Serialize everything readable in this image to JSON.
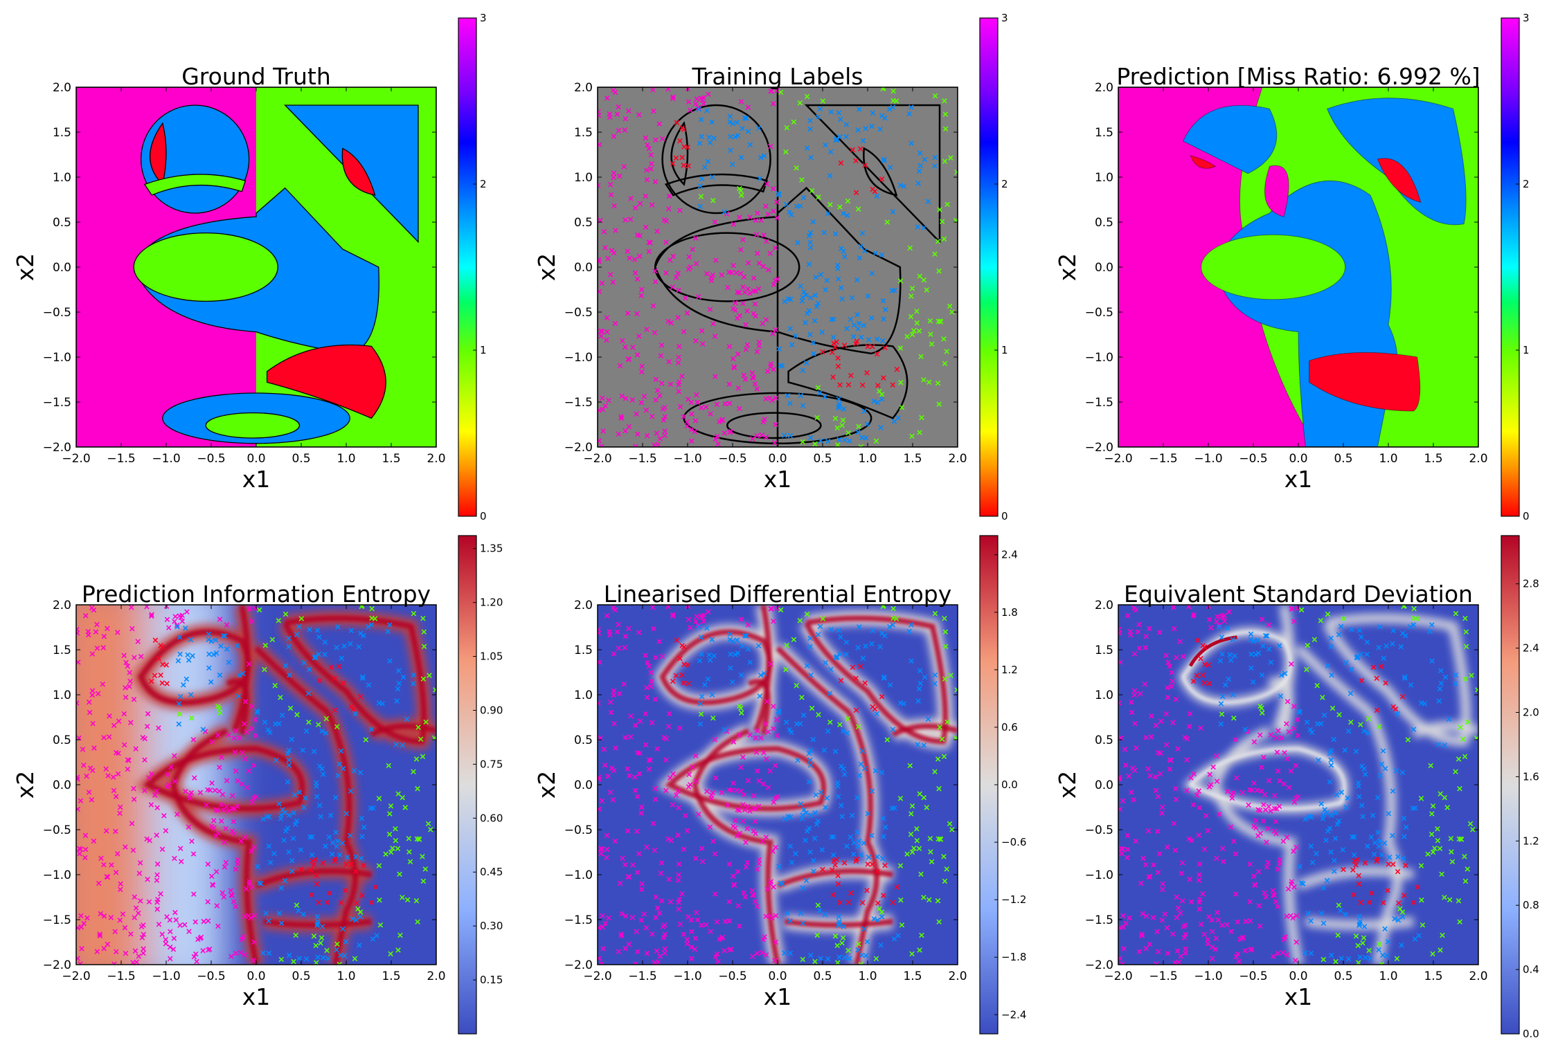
{
  "panels": [
    {
      "id": "ground-truth",
      "title": "Ground Truth",
      "kind": "labels",
      "points": "none",
      "xlabel": "x1",
      "ylabel": "x2"
    },
    {
      "id": "training-labels",
      "title": "Training Labels",
      "kind": "outline",
      "points": "labels",
      "xlabel": "x1",
      "ylabel": "x2"
    },
    {
      "id": "prediction",
      "title": "Prediction [Miss Ratio: 6.992 %]",
      "kind": "prediction",
      "points": "none",
      "xlabel": "x1",
      "ylabel": "x2"
    },
    {
      "id": "prediction-entropy",
      "title": "Prediction Information Entropy",
      "kind": "entropy",
      "points": "all",
      "xlabel": "x1",
      "ylabel": "x2"
    },
    {
      "id": "differential-entropy",
      "title": "Linearised Differential Entropy",
      "kind": "differential",
      "points": "all",
      "xlabel": "x1",
      "ylabel": "x2"
    },
    {
      "id": "equivalent-std",
      "title": "Equivalent Standard Deviation",
      "kind": "stddev",
      "points": "all",
      "xlabel": "x1",
      "ylabel": "x2"
    }
  ],
  "colors": {
    "class_0": "#ff0022",
    "class_1": "#5cff00",
    "class_2": "#0088ff",
    "class_3": "#ff00cc",
    "unlabeled": "#808080",
    "coolwarm_low": "#3b4cc0",
    "coolwarm_mid": "#dddddd",
    "coolwarm_high": "#b40426"
  },
  "chart_data": [
    {
      "type": "heatmap",
      "title": "Ground Truth",
      "xlabel": "x1",
      "ylabel": "x2",
      "xlim": [
        -2,
        2
      ],
      "ylim": [
        -2,
        2
      ],
      "xticks": [
        "−2.0",
        "−1.5",
        "−1.0",
        "−0.5",
        "0.0",
        "0.5",
        "1.0",
        "1.5",
        "2.0"
      ],
      "yticks": [
        "−2.0",
        "−1.5",
        "−1.0",
        "−0.5",
        "0.0",
        "0.5",
        "1.0",
        "1.5",
        "2.0"
      ],
      "colorbar": {
        "colormap": "hsv",
        "range": [
          0,
          3
        ],
        "ticks": [
          "0",
          "1",
          "2",
          "3"
        ]
      },
      "classes": [
        0,
        1,
        2,
        3
      ]
    },
    {
      "type": "scatter",
      "title": "Training Labels",
      "xlabel": "x1",
      "ylabel": "x2",
      "xlim": [
        -2,
        2
      ],
      "ylim": [
        -2,
        2
      ],
      "xticks": [
        "−2.0",
        "−1.5",
        "−1.0",
        "−0.5",
        "0.0",
        "0.5",
        "1.0",
        "1.5",
        "2.0"
      ],
      "yticks": [
        "−2.0",
        "−1.5",
        "−1.0",
        "−0.5",
        "0.0",
        "0.5",
        "1.0",
        "1.5",
        "2.0"
      ],
      "colorbar": {
        "colormap": "hsv",
        "range": [
          0,
          3
        ],
        "ticks": [
          "0",
          "1",
          "2",
          "3"
        ]
      },
      "marker": "x",
      "background": "unlabeled"
    },
    {
      "type": "heatmap",
      "title": "Prediction [Miss Ratio: 6.992 %]",
      "xlabel": "x1",
      "ylabel": "x2",
      "xlim": [
        -2,
        2
      ],
      "ylim": [
        -2,
        2
      ],
      "xticks": [
        "−2.0",
        "−1.5",
        "−1.0",
        "−0.5",
        "0.0",
        "0.5",
        "1.0",
        "1.5",
        "2.0"
      ],
      "yticks": [
        "−2.0",
        "−1.5",
        "−1.0",
        "−0.5",
        "0.0",
        "0.5",
        "1.0",
        "1.5",
        "2.0"
      ],
      "colorbar": {
        "colormap": "hsv",
        "range": [
          0,
          3
        ],
        "ticks": [
          "0",
          "1",
          "2",
          "3"
        ]
      },
      "miss_ratio_percent": 6.992
    },
    {
      "type": "heatmap",
      "title": "Prediction Information Entropy",
      "xlabel": "x1",
      "ylabel": "x2",
      "xlim": [
        -2,
        2
      ],
      "ylim": [
        -2,
        2
      ],
      "xticks": [
        "−2.0",
        "−1.5",
        "−1.0",
        "−0.5",
        "0.0",
        "0.5",
        "1.0",
        "1.5",
        "2.0"
      ],
      "yticks": [
        "−2.0",
        "−1.5",
        "−1.0",
        "−0.5",
        "0.0",
        "0.5",
        "1.0",
        "1.5",
        "2.0"
      ],
      "colorbar": {
        "colormap": "coolwarm",
        "range": [
          0.0,
          1.386
        ],
        "ticks": [
          "0.15",
          "0.30",
          "0.45",
          "0.60",
          "0.75",
          "0.90",
          "1.05",
          "1.20",
          "1.35"
        ]
      }
    },
    {
      "type": "heatmap",
      "title": "Linearised Differential Entropy",
      "xlabel": "x1",
      "ylabel": "x2",
      "xlim": [
        -2,
        2
      ],
      "ylim": [
        -2,
        2
      ],
      "xticks": [
        "−2.0",
        "−1.5",
        "−1.0",
        "−0.5",
        "0.0",
        "0.5",
        "1.0",
        "1.5",
        "2.0"
      ],
      "yticks": [
        "−2.0",
        "−1.5",
        "−1.0",
        "−0.5",
        "0.0",
        "0.5",
        "1.0",
        "1.5",
        "2.0"
      ],
      "colorbar": {
        "colormap": "coolwarm",
        "range": [
          -2.6,
          2.6
        ],
        "ticks": [
          "−2.4",
          "−1.8",
          "−1.2",
          "−0.6",
          "0.0",
          "0.6",
          "1.2",
          "1.8",
          "2.4"
        ]
      }
    },
    {
      "type": "heatmap",
      "title": "Equivalent Standard Deviation",
      "xlabel": "x1",
      "ylabel": "x2",
      "xlim": [
        -2,
        2
      ],
      "ylim": [
        -2,
        2
      ],
      "xticks": [
        "−2.0",
        "−1.5",
        "−1.0",
        "−0.5",
        "0.0",
        "0.5",
        "1.0",
        "1.5",
        "2.0"
      ],
      "yticks": [
        "−2.0",
        "−1.5",
        "−1.0",
        "−0.5",
        "0.0",
        "0.5",
        "1.0",
        "1.5",
        "2.0"
      ],
      "colorbar": {
        "colormap": "coolwarm",
        "range": [
          0.0,
          3.1
        ],
        "ticks": [
          "0.0",
          "0.4",
          "0.8",
          "1.2",
          "1.6",
          "2.0",
          "2.4",
          "2.8"
        ]
      }
    }
  ]
}
